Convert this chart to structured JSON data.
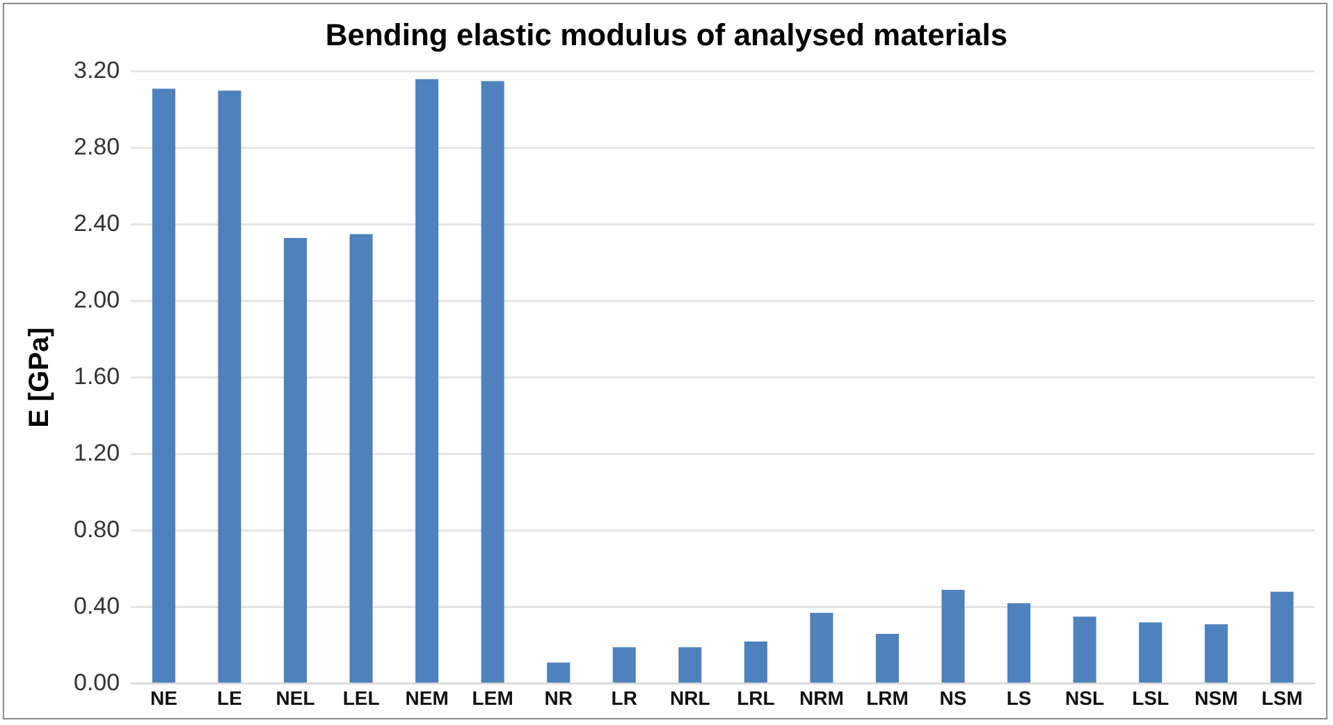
{
  "chart_data": {
    "type": "bar",
    "title": "Bending elastic modulus of analysed materials",
    "ylabel": "E [GPa]",
    "categories": [
      "NE",
      "LE",
      "NEL",
      "LEL",
      "NEM",
      "LEM",
      "NR",
      "LR",
      "NRL",
      "LRL",
      "NRM",
      "LRM",
      "NS",
      "LS",
      "NSL",
      "LSL",
      "NSM",
      "LSM"
    ],
    "values": [
      3.11,
      3.1,
      2.33,
      2.35,
      3.16,
      3.15,
      0.11,
      0.19,
      0.19,
      0.22,
      0.37,
      0.26,
      0.49,
      0.42,
      0.35,
      0.32,
      0.31,
      0.48
    ],
    "color": "#4f81bd",
    "ylim": [
      0,
      3.2
    ],
    "yticks": [
      {
        "value": 0,
        "label": "0.00"
      },
      {
        "value": 0.4,
        "label": "0.40"
      },
      {
        "value": 0.8,
        "label": "0.80"
      },
      {
        "value": 1.2,
        "label": "1.20"
      },
      {
        "value": 1.6,
        "label": "1.60"
      },
      {
        "value": 2,
        "label": "2.00"
      },
      {
        "value": 2.4,
        "label": "2.40"
      },
      {
        "value": 2.8,
        "label": "2.80"
      },
      {
        "value": 3.2,
        "label": "3.20"
      }
    ],
    "grid": "y"
  }
}
